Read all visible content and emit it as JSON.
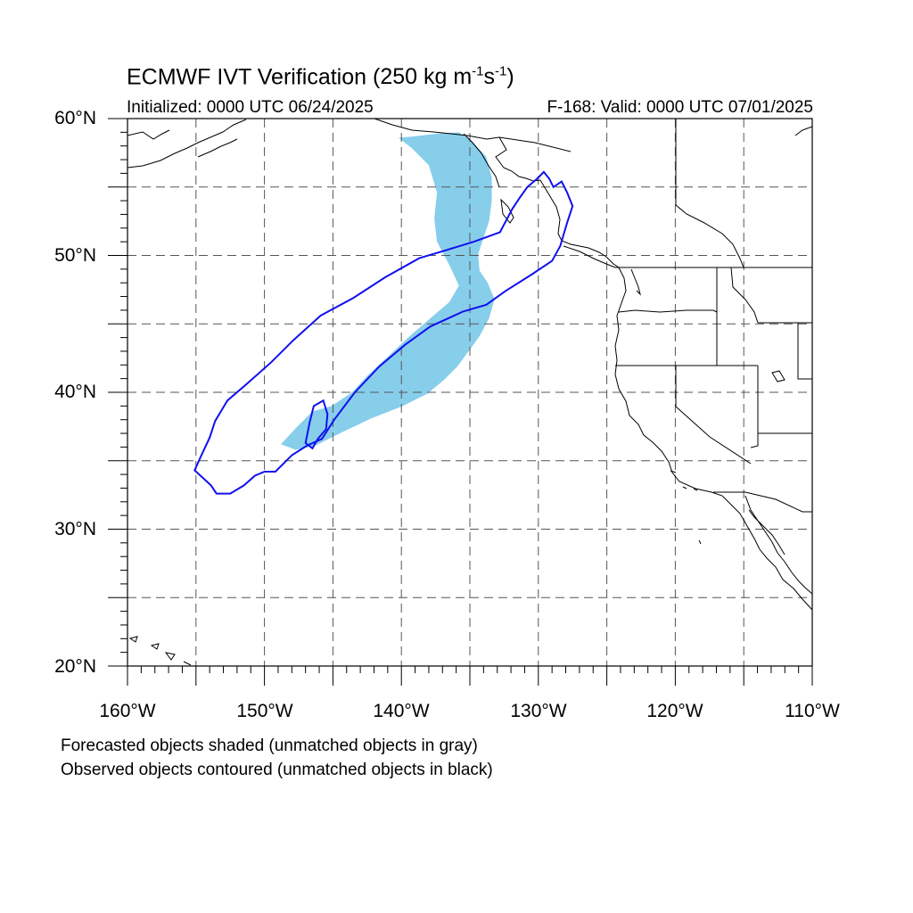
{
  "figure": {
    "title": "ECMWF IVT Verification",
    "title_units": {
      "open": "(250 kg m",
      "exp1": "-1",
      "mid": "s",
      "exp2": "-1",
      "close": ")"
    },
    "init_label": "Initialized: 0000 UTC 06/24/2025",
    "valid_label": "F-168: Valid: 0000 UTC 07/01/2025",
    "notes": [
      "Forecasted objects shaded (unmatched objects in gray)",
      "Observed objects contoured (unmatched objects in black)"
    ]
  },
  "map": {
    "lon_range": [
      -160,
      -110
    ],
    "lat_range": [
      20,
      60
    ],
    "lat_labels": [
      {
        "lat": 60,
        "text": "60°N"
      },
      {
        "lat": 50,
        "text": "50°N"
      },
      {
        "lat": 40,
        "text": "40°N"
      },
      {
        "lat": 30,
        "text": "30°N"
      },
      {
        "lat": 20,
        "text": "20°N"
      }
    ],
    "lon_labels": [
      {
        "lon": -160,
        "text": "160°W"
      },
      {
        "lon": -150,
        "text": "150°W"
      },
      {
        "lon": -140,
        "text": "140°W"
      },
      {
        "lon": -130,
        "text": "130°W"
      },
      {
        "lon": -120,
        "text": "120°W"
      },
      {
        "lon": -110,
        "text": "110°W"
      }
    ],
    "grid_lats": [
      25,
      30,
      35,
      40,
      45,
      50,
      55
    ],
    "grid_lons": [
      -155,
      -150,
      -145,
      -140,
      -135,
      -130,
      -125,
      -120,
      -115
    ],
    "colors": {
      "forecast_fill": "#87ceeb",
      "observed_contour": "#1010ee",
      "coast": "#000000",
      "grid": "#555555"
    },
    "forecast_object": [
      [
        -139.1,
        58.7
      ],
      [
        -137.4,
        58.9
      ],
      [
        -135.8,
        59.0
      ],
      [
        -134.9,
        58.4
      ],
      [
        -133.8,
        57.2
      ],
      [
        -133.4,
        55.7
      ],
      [
        -133.4,
        54.0
      ],
      [
        -133.6,
        52.5
      ],
      [
        -134.0,
        51.3
      ],
      [
        -134.4,
        50.1
      ],
      [
        -134.3,
        48.9
      ],
      [
        -133.7,
        48.0
      ],
      [
        -133.2,
        46.8
      ],
      [
        -133.6,
        45.4
      ],
      [
        -134.3,
        44.1
      ],
      [
        -135.1,
        43.0
      ],
      [
        -135.9,
        41.9
      ],
      [
        -136.9,
        40.9
      ],
      [
        -138.1,
        39.9
      ],
      [
        -139.9,
        39.0
      ],
      [
        -142.2,
        38.1
      ],
      [
        -144.3,
        37.1
      ],
      [
        -146.3,
        36.1
      ],
      [
        -147.7,
        35.8
      ],
      [
        -148.8,
        36.2
      ],
      [
        -147.6,
        37.5
      ],
      [
        -146.5,
        38.6
      ],
      [
        -145.1,
        39.0
      ],
      [
        -143.6,
        40.0
      ],
      [
        -142.5,
        41.2
      ],
      [
        -141.0,
        42.6
      ],
      [
        -139.4,
        44.1
      ],
      [
        -137.9,
        45.4
      ],
      [
        -136.5,
        46.6
      ],
      [
        -135.8,
        47.8
      ],
      [
        -136.5,
        49.3
      ],
      [
        -137.4,
        51.0
      ],
      [
        -137.6,
        52.7
      ],
      [
        -137.4,
        54.6
      ],
      [
        -138.0,
        56.6
      ],
      [
        -139.2,
        57.8
      ],
      [
        -140.2,
        58.6
      ]
    ],
    "observed_outer": [
      [
        -153.5,
        32.6
      ],
      [
        -152.5,
        32.6
      ],
      [
        -151.5,
        33.2
      ],
      [
        -150.7,
        33.9
      ],
      [
        -150.0,
        34.2
      ],
      [
        -149.2,
        34.2
      ],
      [
        -148.0,
        35.4
      ],
      [
        -146.9,
        36.1
      ],
      [
        -145.8,
        36.6
      ],
      [
        -144.9,
        38.0
      ],
      [
        -143.4,
        40.0
      ],
      [
        -141.6,
        41.9
      ],
      [
        -139.7,
        43.5
      ],
      [
        -137.9,
        44.8
      ],
      [
        -135.5,
        45.9
      ],
      [
        -133.8,
        46.4
      ],
      [
        -132.4,
        47.4
      ],
      [
        -130.5,
        48.6
      ],
      [
        -129.0,
        49.6
      ],
      [
        -128.4,
        50.7
      ],
      [
        -127.9,
        52.4
      ],
      [
        -127.5,
        53.6
      ],
      [
        -127.9,
        54.6
      ],
      [
        -128.3,
        55.4
      ],
      [
        -128.9,
        55.0
      ],
      [
        -129.2,
        55.6
      ],
      [
        -129.6,
        56.1
      ],
      [
        -130.1,
        55.6
      ],
      [
        -130.8,
        55.0
      ],
      [
        -131.3,
        54.3
      ],
      [
        -131.9,
        53.4
      ],
      [
        -132.8,
        51.7
      ],
      [
        -134.7,
        51.0
      ],
      [
        -136.7,
        50.4
      ],
      [
        -138.7,
        49.8
      ],
      [
        -141.2,
        48.4
      ],
      [
        -143.5,
        46.9
      ],
      [
        -145.9,
        45.6
      ],
      [
        -147.9,
        43.8
      ],
      [
        -149.5,
        42.2
      ],
      [
        -151.3,
        40.6
      ],
      [
        -152.7,
        39.4
      ],
      [
        -153.6,
        37.9
      ],
      [
        -154.0,
        36.7
      ],
      [
        -154.6,
        35.4
      ],
      [
        -155.1,
        34.3
      ],
      [
        -153.9,
        33.2
      ]
    ],
    "observed_inner": [
      [
        -146.1,
        36.6
      ],
      [
        -145.5,
        37.3
      ],
      [
        -145.4,
        38.4
      ],
      [
        -145.7,
        39.4
      ],
      [
        -146.4,
        39.0
      ],
      [
        -146.7,
        37.8
      ],
      [
        -147.0,
        36.3
      ],
      [
        -146.5,
        35.9
      ]
    ]
  }
}
